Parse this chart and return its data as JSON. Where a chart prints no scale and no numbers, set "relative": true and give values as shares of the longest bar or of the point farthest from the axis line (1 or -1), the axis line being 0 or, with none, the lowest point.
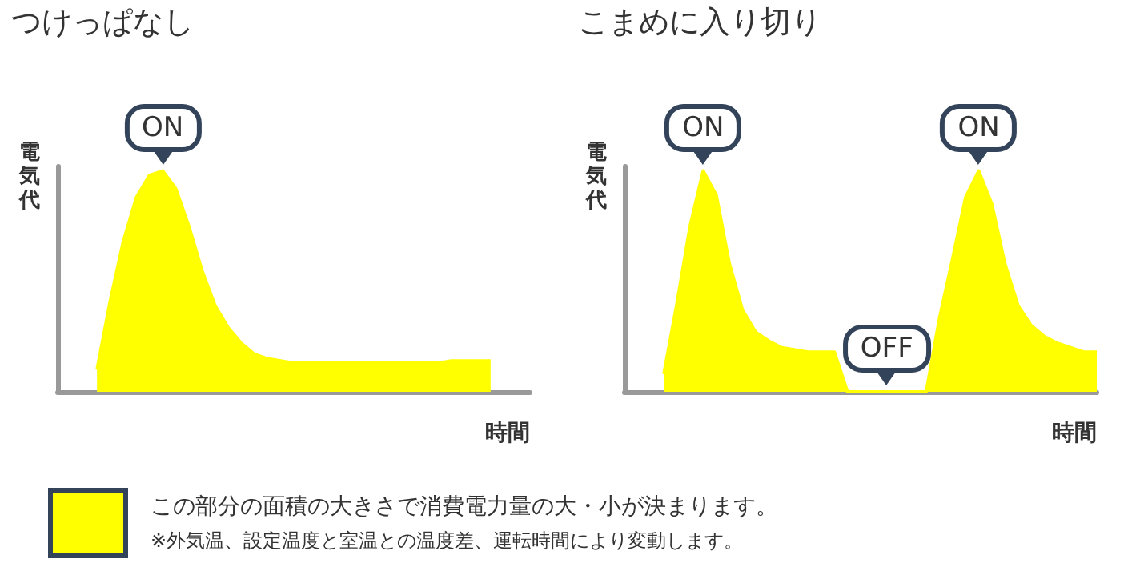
{
  "chart_data": [
    {
      "type": "area",
      "title": "つけっぱなし",
      "xlabel": "時間",
      "ylabel": "電気代",
      "relative": true,
      "legend": "bottom",
      "grid": false,
      "categories": [
        null,
        null,
        null,
        null,
        null,
        null,
        null,
        null,
        null,
        null,
        null,
        null,
        null,
        null,
        null,
        null,
        null,
        null,
        null,
        null,
        null,
        null,
        null,
        null,
        null,
        null,
        null,
        null,
        null,
        null,
        null,
        null,
        null,
        null,
        null,
        null,
        null
      ],
      "series": [
        {
          "name": "この部分の面積の大きさで消費電力量の大・小が決まります。",
          "color": "#ffff00",
          "values": [
            null,
            null,
            null,
            0.1,
            0.41,
            0.68,
            0.88,
            0.98,
            1,
            0.92,
            0.75,
            0.55,
            0.39,
            0.29,
            0.22,
            0.17,
            0.15,
            0.14,
            0.13,
            0.13,
            0.13,
            0.13,
            0.13,
            0.13,
            0.13,
            0.13,
            0.13,
            0.13,
            0.13,
            0.13,
            0.14,
            0.14,
            0.14,
            0.14,
            null,
            null,
            null
          ]
        }
      ],
      "annotations": [
        {
          "text": "ON",
          "y": 1
        },
        "※外気温、設定温度と室温との温度差、運転時間により変動します。"
      ]
    },
    {
      "type": "area",
      "title": "こまめに入り切り",
      "xlabel": "時間",
      "ylabel": "電気代",
      "relative": true,
      "grid": false,
      "categories": [
        null,
        null,
        null,
        null,
        null,
        null,
        null,
        null,
        null,
        null,
        null,
        null,
        null,
        null,
        null,
        null,
        null,
        null,
        null,
        null,
        null,
        null,
        null,
        null,
        null,
        null,
        null,
        null,
        null,
        null,
        null,
        null,
        null,
        null,
        null,
        null,
        null
      ],
      "series": [
        {
          "color": "#ffff00",
          "values": [
            null,
            null,
            null,
            0.08,
            0.4,
            0.75,
            1,
            0.89,
            0.58,
            0.37,
            0.27,
            0.23,
            0.2,
            0.19,
            0.18,
            0.18,
            0.18,
            0,
            0,
            0,
            0,
            0,
            0,
            0,
            0.33,
            0.6,
            0.88,
            1,
            0.85,
            0.58,
            0.39,
            0.3,
            0.25,
            0.22,
            0.2,
            0.18,
            0.18
          ]
        }
      ],
      "annotations": [
        {
          "text": "ON",
          "y": 1
        },
        {
          "text": "OFF",
          "y": 0
        },
        {
          "text": "ON",
          "y": 1
        }
      ]
    }
  ]
}
